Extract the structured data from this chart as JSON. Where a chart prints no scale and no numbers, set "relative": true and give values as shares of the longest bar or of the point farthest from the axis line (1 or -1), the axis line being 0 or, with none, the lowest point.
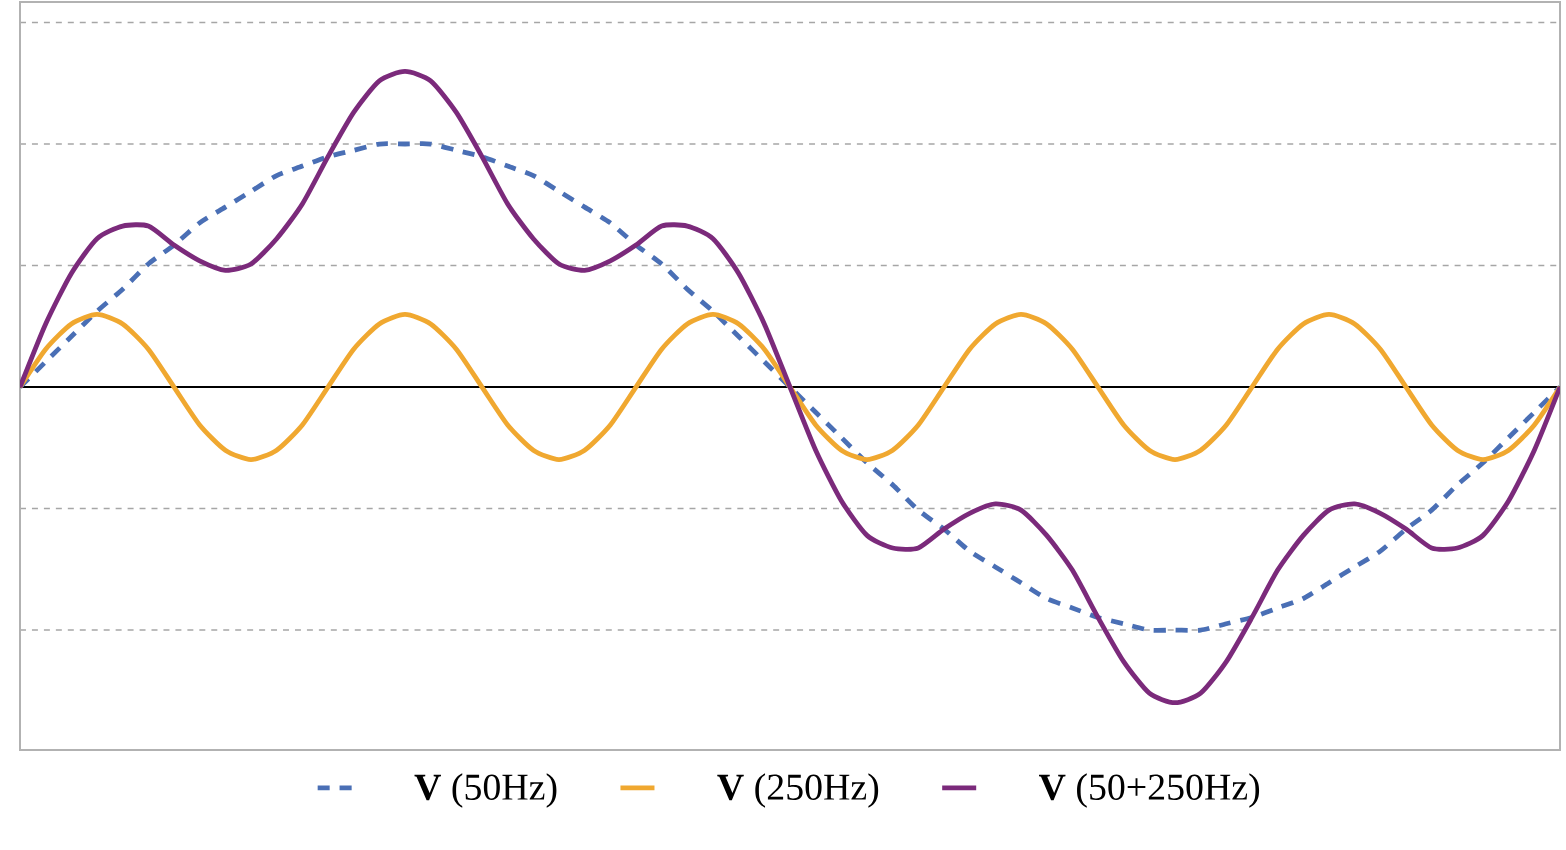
{
  "chart_data": {
    "type": "line",
    "relative": true,
    "grid": "y",
    "legend": "bottom",
    "categories": [
      null,
      null,
      null,
      null,
      null,
      null,
      null,
      null,
      null,
      null,
      null,
      null,
      null,
      null,
      null,
      null,
      null,
      null,
      null,
      null,
      null,
      null,
      null,
      null,
      null,
      null,
      null,
      null,
      null,
      null,
      null,
      null,
      null,
      null,
      null,
      null,
      null,
      null,
      null,
      null,
      null,
      null,
      null,
      null,
      null,
      null,
      null,
      null,
      null,
      null,
      null,
      null,
      null,
      null,
      null,
      null,
      null,
      null,
      null,
      null,
      null
    ],
    "series": [
      {
        "name": "**V** (50Hz)",
        "color": "#4a6fb5",
        "line_style": "dashed",
        "values": [
          0,
          0.08,
          0.16,
          0.24,
          0.31,
          0.39,
          0.45,
          0.52,
          0.57,
          0.62,
          0.67,
          0.7,
          0.73,
          0.75,
          0.77,
          0.77,
          0.77,
          0.75,
          0.73,
          0.7,
          0.67,
          0.62,
          0.57,
          0.52,
          0.45,
          0.39,
          0.31,
          0.24,
          0.16,
          0.08,
          0,
          -0.08,
          -0.16,
          -0.24,
          -0.31,
          -0.39,
          -0.45,
          -0.52,
          -0.57,
          -0.62,
          -0.67,
          -0.7,
          -0.73,
          -0.75,
          -0.77,
          -0.77,
          -0.77,
          -0.75,
          -0.73,
          -0.7,
          -0.67,
          -0.62,
          -0.57,
          -0.52,
          -0.45,
          -0.39,
          -0.31,
          -0.24,
          -0.16,
          -0.08,
          0
        ]
      },
      {
        "name": "**V** (250Hz)",
        "color": "#f0a830",
        "line_style": "solid",
        "values": [
          0,
          0.12,
          0.2,
          0.23,
          0.2,
          0.12,
          0,
          -0.12,
          -0.2,
          -0.23,
          -0.2,
          -0.12,
          0,
          0.12,
          0.2,
          0.23,
          0.2,
          0.12,
          0,
          -0.12,
          -0.2,
          -0.23,
          -0.2,
          -0.12,
          0,
          0.12,
          0.2,
          0.23,
          0.2,
          0.12,
          0,
          -0.12,
          -0.2,
          -0.23,
          -0.2,
          -0.12,
          0,
          0.12,
          0.2,
          0.23,
          0.2,
          0.12,
          0,
          -0.12,
          -0.2,
          -0.23,
          -0.2,
          -0.12,
          0,
          0.12,
          0.2,
          0.23,
          0.2,
          0.12,
          0,
          -0.12,
          -0.2,
          -0.23,
          -0.2,
          -0.12,
          0
        ]
      },
      {
        "name": "**V** (50+250Hz)",
        "color": "#7b2a7b",
        "line_style": "solid",
        "values": [
          0,
          0.2,
          0.36,
          0.47,
          0.51,
          0.51,
          0.45,
          0.4,
          0.37,
          0.39,
          0.47,
          0.58,
          0.73,
          0.87,
          0.97,
          1.0,
          0.97,
          0.87,
          0.73,
          0.58,
          0.47,
          0.39,
          0.37,
          0.4,
          0.45,
          0.51,
          0.51,
          0.47,
          0.36,
          0.2,
          0,
          -0.2,
          -0.36,
          -0.47,
          -0.51,
          -0.51,
          -0.45,
          -0.4,
          -0.37,
          -0.39,
          -0.47,
          -0.58,
          -0.73,
          -0.87,
          -0.97,
          -1.0,
          -0.97,
          -0.87,
          -0.73,
          -0.58,
          -0.47,
          -0.39,
          -0.37,
          -0.4,
          -0.45,
          -0.51,
          -0.51,
          -0.47,
          -0.36,
          -0.2,
          0
        ]
      }
    ]
  }
}
